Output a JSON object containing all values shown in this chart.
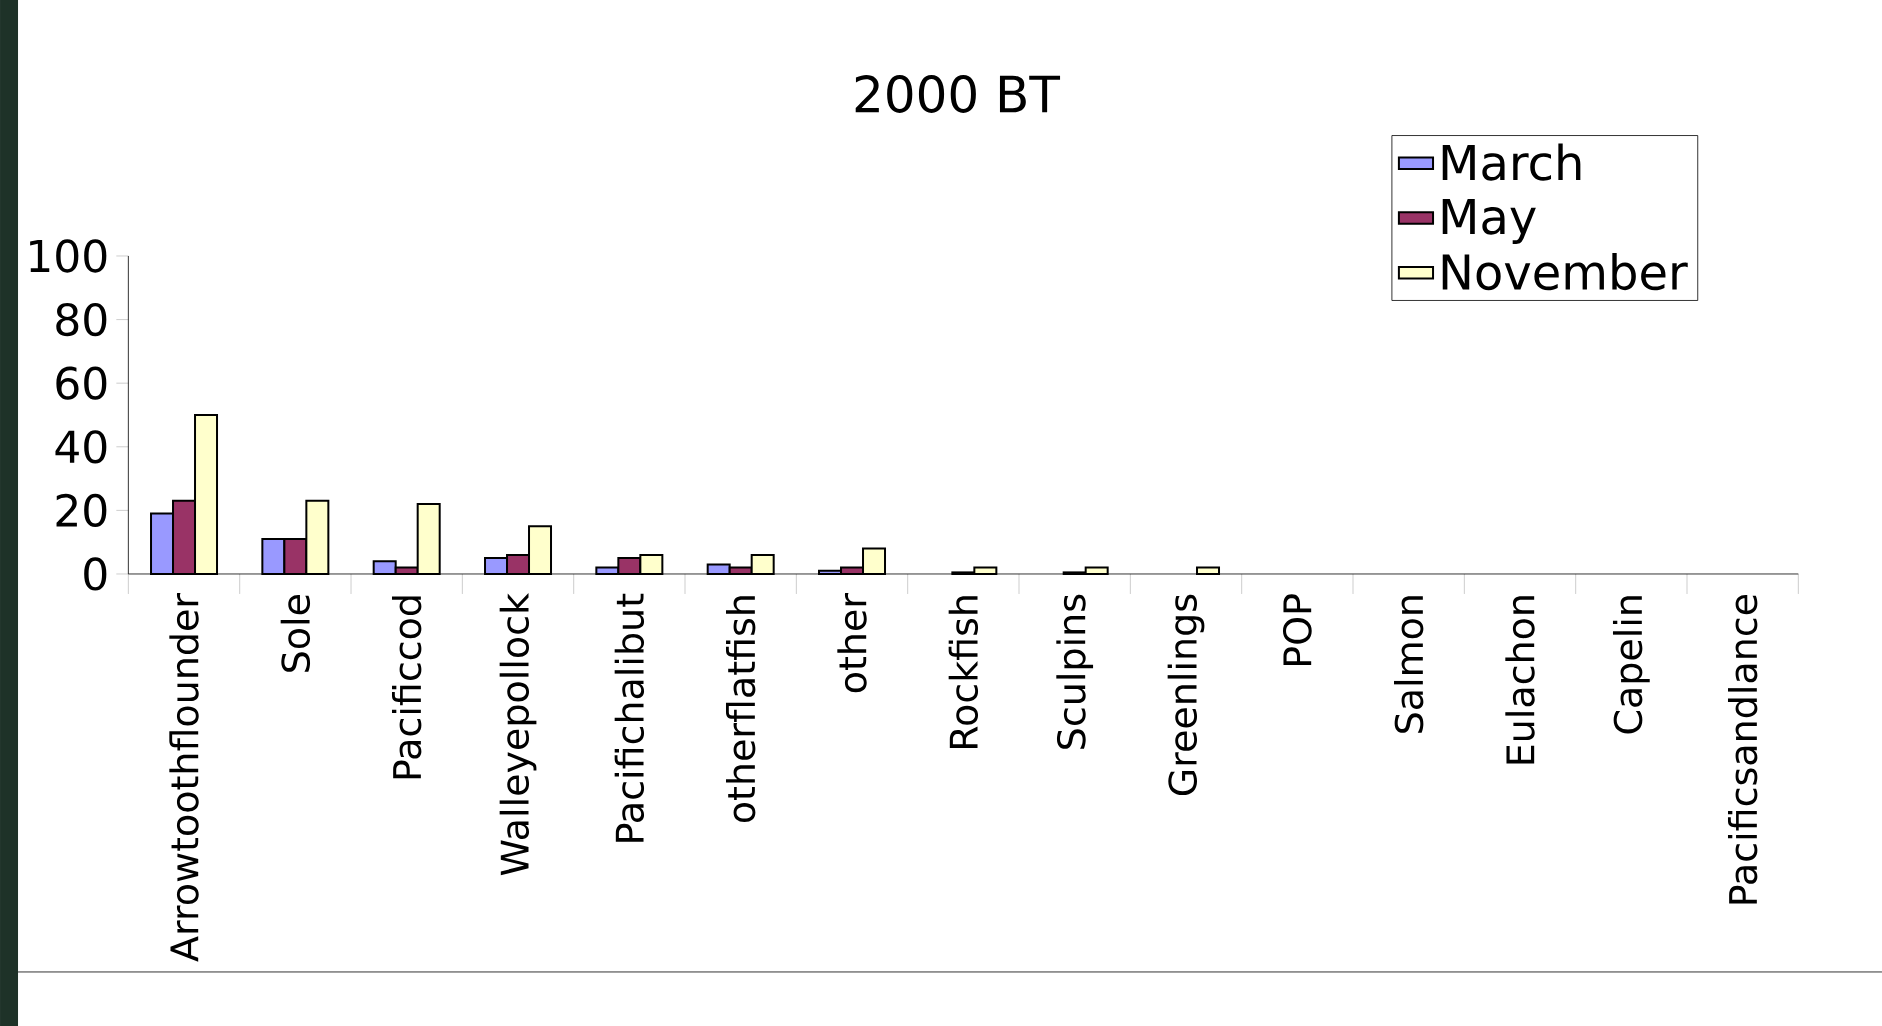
{
  "chart_data": {
    "type": "bar",
    "title": "2000 BT",
    "categories": [
      "Arrowtoothflounder",
      "Sole",
      "Pacificcod",
      "Walleyepollock",
      "Pacifichalibut",
      "otherflatfish",
      "other",
      "Rockfish",
      "Sculpins",
      "Greenlings",
      "POP",
      "Salmon",
      "Eulachon",
      "Capelin",
      "Pacificsandlance"
    ],
    "series": [
      {
        "name": "March",
        "color": "#9999ff",
        "values": [
          19,
          11,
          4,
          5,
          2,
          3,
          1,
          null,
          null,
          0,
          0,
          0,
          0,
          0,
          0
        ]
      },
      {
        "name": "May",
        "color": "#993366",
        "values": [
          23,
          11,
          2,
          6,
          5,
          2,
          2,
          0.5,
          0.5,
          0,
          0,
          0,
          0,
          0,
          0
        ]
      },
      {
        "name": "November",
        "color": "#ffffcc",
        "values": [
          50,
          23,
          22,
          15,
          6,
          6,
          8,
          2,
          2,
          2,
          0,
          0,
          0,
          0,
          0
        ]
      }
    ],
    "ylim": [
      0,
      100
    ],
    "yticks": [
      0,
      20,
      40,
      60,
      80,
      100
    ],
    "grid": false,
    "legend": "top right"
  }
}
